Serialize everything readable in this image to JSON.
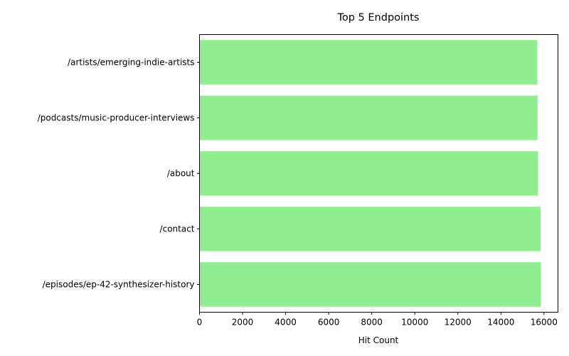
{
  "chart_data": {
    "type": "bar",
    "orientation": "horizontal",
    "title": "Top 5 Endpoints",
    "xlabel": "Hit Count",
    "ylabel": "",
    "categories": [
      "/artists/emerging-indie-artists",
      "/podcasts/music-producer-interviews",
      "/about",
      "/contact",
      "/episodes/ep-42-synthesizer-history"
    ],
    "values": [
      15690,
      15700,
      15720,
      15840,
      15860
    ],
    "xlim": [
      0,
      16650
    ],
    "xticks": [
      "0",
      "2000",
      "4000",
      "6000",
      "8000",
      "10000",
      "12000",
      "14000",
      "16000"
    ],
    "bar_color": "#90ee90",
    "grid": false,
    "legend": "none"
  }
}
